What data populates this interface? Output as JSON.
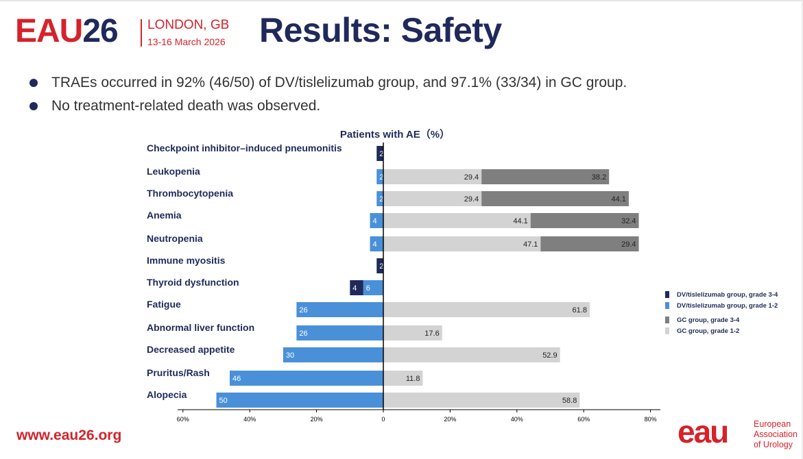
{
  "header": {
    "logo_part1": "EAU",
    "logo_part2": "26",
    "city": "LONDON, GB",
    "dates": "13-16 March 2026",
    "title": "Results: Safety"
  },
  "bullets": [
    "TRAEs occurred in 92% (46/50) of DV/tislelizumab group, and 97.1% (33/34) in GC group.",
    "No treatment-related death was observed."
  ],
  "footer": {
    "url": "www.eau26.org",
    "org_line1": "European",
    "org_line2": "Association",
    "org_line3": "of Urology",
    "mark": "eau"
  },
  "colors": {
    "brand_red": "#d6222a",
    "navy": "#1f2a5a",
    "dv_grade34": "#1f2a5a",
    "dv_grade12": "#4a90d9",
    "gc_grade34": "#7f7f7f",
    "gc_grade12": "#d3d3d3"
  },
  "chart_data": {
    "type": "bar",
    "orientation": "horizontal-diverging-stacked",
    "title": "Patients with AE（%）",
    "xlim": [
      -60,
      80
    ],
    "x_ticks": [
      -60,
      -40,
      -20,
      0,
      20,
      40,
      60,
      80
    ],
    "x_tick_labels": [
      "60%",
      "40%",
      "20%",
      "0",
      "20%",
      "40%",
      "60%",
      "80%"
    ],
    "legend_position": "right",
    "categories": [
      "Checkpoint inhibitor–induced pneumonitis",
      "Leukopenia",
      "Thrombocytopenia",
      "Anemia",
      "Neutropenia",
      "Immune myositis",
      "Thyroid dysfunction",
      "Fatigue",
      "Abnormal liver function",
      "Decreased appetite",
      "Pruritus/Rash",
      "Alopecia"
    ],
    "series": [
      {
        "name": "DV/tislelizumab group, grade 3-4",
        "side": "left",
        "values": [
          2,
          0,
          0,
          0,
          0,
          2,
          4,
          0,
          0,
          0,
          0,
          0
        ]
      },
      {
        "name": "DV/tislelizumab group, grade 1-2",
        "side": "left",
        "values": [
          0,
          2,
          2,
          4,
          4,
          0,
          6,
          26,
          26,
          30,
          46,
          50
        ]
      },
      {
        "name": "GC group, grade 3-4",
        "side": "right",
        "values": [
          0,
          38.2,
          44.1,
          32.4,
          29.4,
          0,
          0,
          0,
          0,
          0,
          0,
          0
        ]
      },
      {
        "name": "GC group, grade 1-2",
        "side": "right",
        "values": [
          0,
          29.4,
          29.4,
          44.1,
          47.1,
          0,
          0,
          61.8,
          17.6,
          52.9,
          11.8,
          58.8
        ]
      }
    ]
  }
}
